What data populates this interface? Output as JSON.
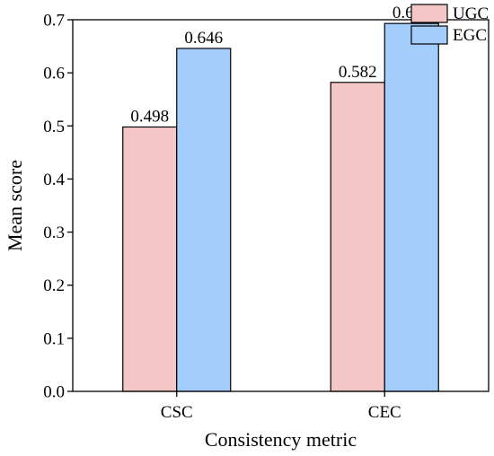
{
  "chart_data": {
    "type": "bar",
    "title": "",
    "xlabel": "Consistency metric",
    "ylabel": "Mean score",
    "categories": [
      "CSC",
      "CEC"
    ],
    "series": [
      {
        "name": "UGC",
        "values": [
          0.498,
          0.582
        ],
        "labels": [
          "0.498",
          "0.582"
        ],
        "color": "#f4c7c7"
      },
      {
        "name": "EGC",
        "values": [
          0.646,
          0.693
        ],
        "labels": [
          "0.646",
          "0.693"
        ],
        "color": "#a3cdfa"
      }
    ],
    "ylim": [
      0.0,
      0.7
    ],
    "yticks": [
      0.0,
      0.1,
      0.2,
      0.3,
      0.4,
      0.5,
      0.6,
      0.7
    ],
    "ytick_labels": [
      "0.0",
      "0.1",
      "0.2",
      "0.3",
      "0.4",
      "0.5",
      "0.6",
      "0.7"
    ],
    "grid": false,
    "legend_position": "top-right"
  }
}
